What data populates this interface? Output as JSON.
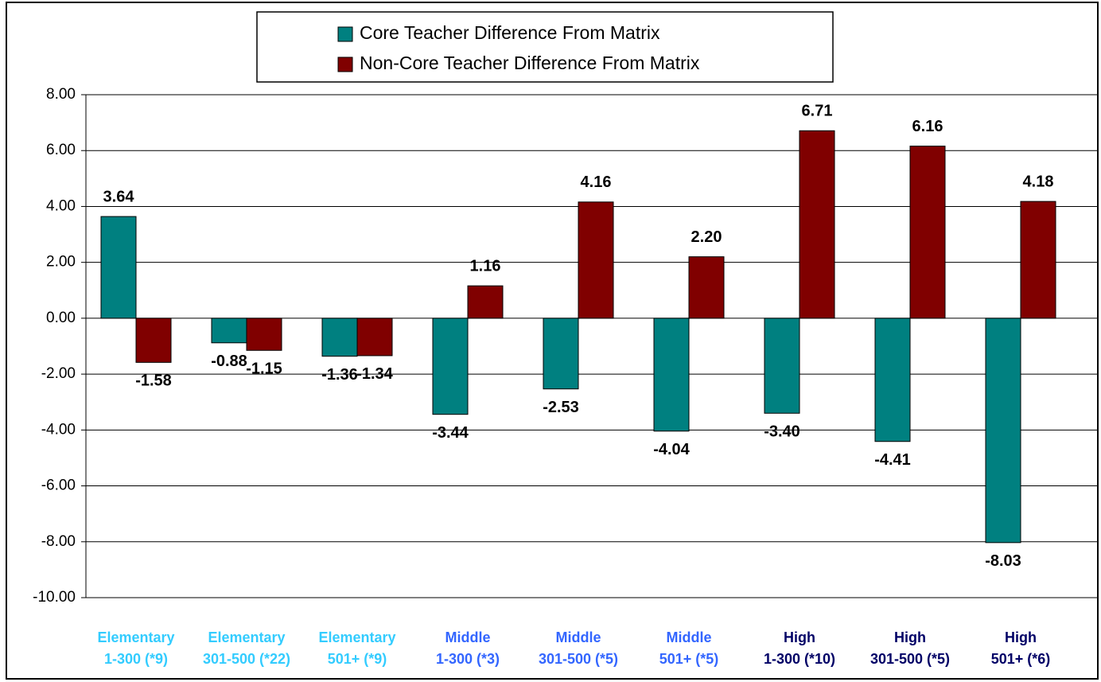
{
  "chart_data": {
    "type": "bar",
    "categories": [
      [
        "Elementary",
        "1-300 (*9)"
      ],
      [
        "Elementary",
        "301-500 (*22)"
      ],
      [
        "Elementary",
        "501+ (*9)"
      ],
      [
        "Middle",
        "1-300 (*3)"
      ],
      [
        "Middle",
        "301-500 (*5)"
      ],
      [
        "Middle",
        "501+ (*5)"
      ],
      [
        "High",
        "1-300 (*10)"
      ],
      [
        "High",
        "301-500 (*5)"
      ],
      [
        "High",
        "501+ (*6)"
      ]
    ],
    "category_colors": [
      "#33ccff",
      "#33ccff",
      "#33ccff",
      "#3366ff",
      "#3366ff",
      "#3366ff",
      "#000066",
      "#000066",
      "#000066"
    ],
    "series": [
      {
        "name": "Core Teacher Difference From Matrix",
        "color": "#008080",
        "values": [
          3.64,
          -0.88,
          -1.36,
          -3.44,
          -2.53,
          -4.04,
          -3.4,
          -4.41,
          -8.03
        ],
        "value_labels": [
          "3.64",
          "-0.88",
          "-1.36",
          "-3.44",
          "-2.53",
          "-4.04",
          "-3.40",
          "-4.41",
          "-8.03"
        ]
      },
      {
        "name": "Non-Core Teacher Difference From Matrix",
        "color": "#800000",
        "values": [
          -1.58,
          -1.15,
          -1.34,
          1.16,
          4.16,
          2.2,
          6.71,
          6.16,
          4.18
        ],
        "value_labels": [
          "-1.58",
          "-1.15",
          "-1.34",
          "1.16",
          "4.16",
          "2.20",
          "6.71",
          "6.16",
          "4.18"
        ]
      }
    ],
    "ylim": [
      -10,
      8
    ],
    "yticks": [
      {
        "value": -10,
        "label": "-10.00"
      },
      {
        "value": -8,
        "label": "-8.00"
      },
      {
        "value": -6,
        "label": "-6.00"
      },
      {
        "value": -4,
        "label": "-4.00"
      },
      {
        "value": -2,
        "label": "-2.00"
      },
      {
        "value": 0,
        "label": "0.00"
      },
      {
        "value": 2,
        "label": "2.00"
      },
      {
        "value": 4,
        "label": "4.00"
      },
      {
        "value": 6,
        "label": "6.00"
      },
      {
        "value": 8,
        "label": "8.00"
      }
    ],
    "grid": true,
    "legend": "top"
  }
}
